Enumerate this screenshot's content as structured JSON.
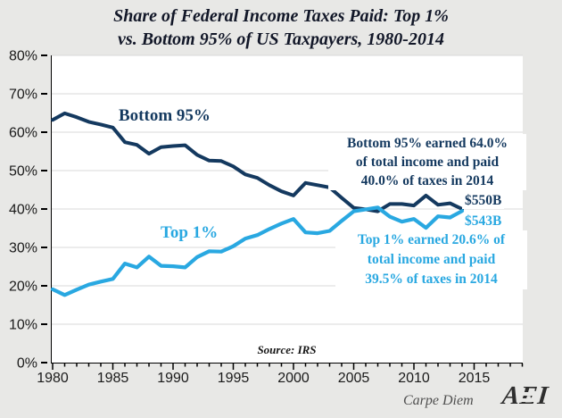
{
  "title": {
    "line1": "Share of Federal Income Taxes Paid: Top 1%",
    "line2": "vs. Bottom 95% of US Taxpayers, 1980-2014"
  },
  "colors": {
    "navy": "#14395f",
    "blue": "#29a8e1",
    "title": "#121728",
    "background": "#e8e8e6",
    "plot_bg": "#ffffff",
    "gridline": "#d8d8d8",
    "axis": "#000000",
    "tick_label": "#1a1a1a",
    "footer_gray": "#4f4f4f"
  },
  "chart_data": {
    "type": "line",
    "title": "Share of Federal Income Taxes Paid: Top 1% vs. Bottom 95% of US Taxpayers, 1980-2014",
    "x": [
      1980,
      1981,
      1982,
      1983,
      1984,
      1985,
      1986,
      1987,
      1988,
      1989,
      1990,
      1991,
      1992,
      1993,
      1994,
      1995,
      1996,
      1997,
      1998,
      1999,
      2000,
      2001,
      2002,
      2003,
      2004,
      2005,
      2006,
      2007,
      2008,
      2009,
      2010,
      2011,
      2012,
      2013,
      2014
    ],
    "series": [
      {
        "name": "Bottom 95%",
        "color": "#14395f",
        "values": [
          63.2,
          64.9,
          63.9,
          62.7,
          62.0,
          61.2,
          57.4,
          56.7,
          54.4,
          56.1,
          56.4,
          56.6,
          54.1,
          52.6,
          52.5,
          51.1,
          49.0,
          48.1,
          46.2,
          44.6,
          43.5,
          46.8,
          46.2,
          45.6,
          42.9,
          40.3,
          39.9,
          39.4,
          41.3,
          41.3,
          40.9,
          43.5,
          41.1,
          41.5,
          40.0
        ]
      },
      {
        "name": "Top 1%",
        "color": "#29a8e1",
        "values": [
          19.1,
          17.6,
          19.0,
          20.3,
          21.1,
          21.8,
          25.8,
          24.8,
          27.6,
          25.2,
          25.1,
          24.8,
          27.5,
          29.0,
          28.9,
          30.3,
          32.3,
          33.2,
          34.8,
          36.2,
          37.4,
          33.9,
          33.7,
          34.3,
          36.9,
          39.4,
          39.9,
          40.4,
          38.0,
          36.7,
          37.4,
          35.1,
          38.1,
          37.8,
          39.5
        ]
      }
    ],
    "ylim": [
      0,
      80
    ],
    "y_ticks": [
      "0%",
      "10%",
      "20%",
      "30%",
      "40%",
      "50%",
      "60%",
      "70%",
      "80%"
    ],
    "y_tick_values": [
      0,
      10,
      20,
      30,
      40,
      50,
      60,
      70,
      80
    ],
    "x_ticks": [
      1980,
      1985,
      1990,
      1995,
      2000,
      2005,
      2010,
      2015
    ],
    "x_minor_step": 1,
    "x_axis_end": 2019,
    "grid": "horizontal",
    "legend": "inline-labels"
  },
  "labels": {
    "bottom95": "Bottom 95%",
    "top1": "Top 1%",
    "end_value_navy": "$550B",
    "end_value_blue": "$543B"
  },
  "annotations": {
    "bottom95": {
      "lines": [
        "Bottom 95% earned 64.0%",
        "of total income and paid",
        "40.0% of taxes in 2014"
      ]
    },
    "top1": {
      "lines": [
        "Top 1% earned 20.6% of",
        "total income and paid",
        "39.5% of taxes in 2014"
      ]
    }
  },
  "source": "Source: IRS",
  "footer": {
    "brand": "Carpe Diem",
    "logo": "AEI"
  }
}
